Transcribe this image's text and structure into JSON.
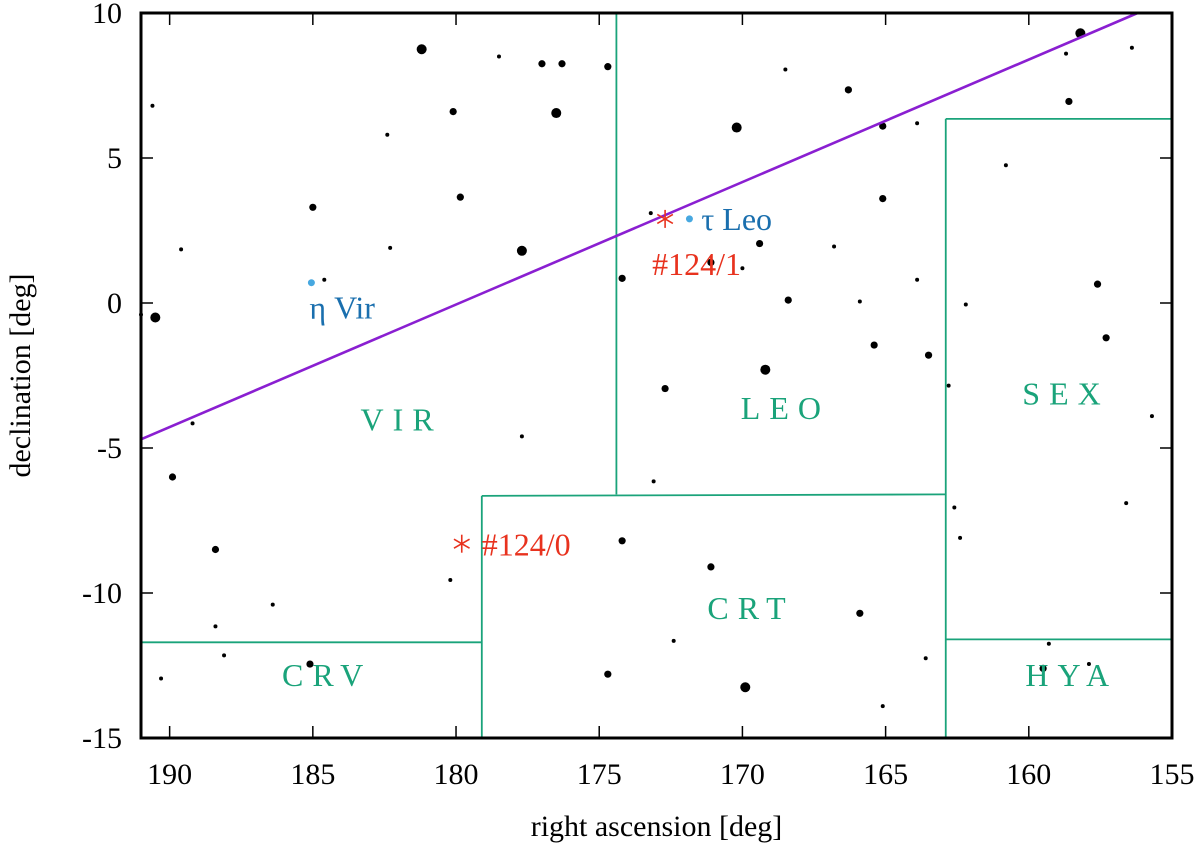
{
  "chart_data": {
    "type": "scatter",
    "xlabel": "right ascension [deg]",
    "ylabel": "declination [deg]",
    "xlim": [
      191,
      155
    ],
    "ylim": [
      -15,
      10
    ],
    "xticks": [
      190,
      185,
      180,
      175,
      170,
      165,
      160,
      155
    ],
    "yticks": [
      10,
      5,
      0,
      -5,
      -10,
      -15
    ],
    "colors": {
      "star": "#000000",
      "boundary": "#1aa37a",
      "ecliptic": "#8a1fd1",
      "named_star": "#47a8e0",
      "named_label": "#1a6fae",
      "candidate": "#e8321e"
    },
    "ecliptic": [
      [
        191,
        -4.7
      ],
      [
        156.2,
        10
      ]
    ],
    "boundaries": [
      [
        [
          174.4,
          10
        ],
        [
          174.4,
          -6.6
        ]
      ],
      [
        [
          179.1,
          -6.65
        ],
        [
          162.9,
          -6.6
        ]
      ],
      [
        [
          179.1,
          -6.65
        ],
        [
          179.1,
          -15
        ]
      ],
      [
        [
          191,
          -11.7
        ],
        [
          179.1,
          -11.7
        ]
      ],
      [
        [
          162.9,
          6.35
        ],
        [
          155,
          6.35
        ]
      ],
      [
        [
          162.9,
          6.35
        ],
        [
          162.9,
          -15
        ]
      ],
      [
        [
          162.9,
          -11.6
        ],
        [
          155,
          -11.6
        ]
      ]
    ],
    "constellations": [
      {
        "label": "VIR",
        "ra": 181.9,
        "dec": -4.4
      },
      {
        "label": "LEO",
        "ra": 168.5,
        "dec": -4.0
      },
      {
        "label": "SEX",
        "ra": 158.7,
        "dec": -3.5
      },
      {
        "label": "CRT",
        "ra": 169.7,
        "dec": -10.9
      },
      {
        "label": "CRV",
        "ra": 184.5,
        "dec": -13.2
      },
      {
        "label": "HYA",
        "ra": 158.5,
        "dec": -13.2
      }
    ],
    "named_stars": [
      {
        "label": "τ Leo",
        "ra": 171.85,
        "dec": 2.9
      },
      {
        "label": "η Vir",
        "ra": 185.05,
        "dec": 0.7
      }
    ],
    "candidates": [
      {
        "label": "#124/1",
        "ra": 172.7,
        "dec": 2.9
      },
      {
        "label": "#124/0",
        "ra": 179.8,
        "dec": -8.3
      }
    ],
    "stars": [
      {
        "ra": 190.6,
        "dec": 6.8,
        "size": 1
      },
      {
        "ra": 181.2,
        "dec": 8.75,
        "size": 3
      },
      {
        "ra": 178.5,
        "dec": 8.5,
        "size": 1
      },
      {
        "ra": 177.0,
        "dec": 8.25,
        "size": 2
      },
      {
        "ra": 176.3,
        "dec": 8.25,
        "size": 2
      },
      {
        "ra": 174.7,
        "dec": 8.15,
        "size": 2
      },
      {
        "ra": 176.5,
        "dec": 6.55,
        "size": 3
      },
      {
        "ra": 180.1,
        "dec": 6.6,
        "size": 2
      },
      {
        "ra": 182.4,
        "dec": 5.8,
        "size": 1
      },
      {
        "ra": 185.0,
        "dec": 3.3,
        "size": 2
      },
      {
        "ra": 179.85,
        "dec": 3.65,
        "size": 2
      },
      {
        "ra": 189.6,
        "dec": 1.85,
        "size": 1
      },
      {
        "ra": 182.3,
        "dec": 1.9,
        "size": 1
      },
      {
        "ra": 177.7,
        "dec": 1.8,
        "size": 3
      },
      {
        "ra": 184.6,
        "dec": 0.8,
        "size": 1
      },
      {
        "ra": 190.5,
        "dec": -0.5,
        "size": 3
      },
      {
        "ra": 191.0,
        "dec": -0.4,
        "size": 1
      },
      {
        "ra": 189.2,
        "dec": -4.15,
        "size": 1
      },
      {
        "ra": 177.7,
        "dec": -4.6,
        "size": 1
      },
      {
        "ra": 189.9,
        "dec": -6.0,
        "size": 2
      },
      {
        "ra": 188.4,
        "dec": -8.5,
        "size": 2
      },
      {
        "ra": 180.2,
        "dec": -9.55,
        "size": 1
      },
      {
        "ra": 186.4,
        "dec": -10.4,
        "size": 1
      },
      {
        "ra": 188.4,
        "dec": -11.15,
        "size": 1
      },
      {
        "ra": 188.1,
        "dec": -12.15,
        "size": 1
      },
      {
        "ra": 185.1,
        "dec": -12.45,
        "size": 2
      },
      {
        "ra": 190.3,
        "dec": -12.95,
        "size": 1
      },
      {
        "ra": 173.2,
        "dec": 3.1,
        "size": 1
      },
      {
        "ra": 174.2,
        "dec": 0.85,
        "size": 2
      },
      {
        "ra": 170.2,
        "dec": 6.05,
        "size": 3
      },
      {
        "ra": 168.5,
        "dec": 8.05,
        "size": 1
      },
      {
        "ra": 166.3,
        "dec": 7.35,
        "size": 2
      },
      {
        "ra": 165.1,
        "dec": 6.1,
        "size": 2
      },
      {
        "ra": 163.9,
        "dec": 6.2,
        "size": 1
      },
      {
        "ra": 169.4,
        "dec": 2.05,
        "size": 2
      },
      {
        "ra": 166.8,
        "dec": 1.95,
        "size": 1
      },
      {
        "ra": 165.1,
        "dec": 3.6,
        "size": 2
      },
      {
        "ra": 171.1,
        "dec": 1.4,
        "size": 2
      },
      {
        "ra": 170.0,
        "dec": 1.2,
        "size": 1
      },
      {
        "ra": 168.4,
        "dec": 0.1,
        "size": 2
      },
      {
        "ra": 165.9,
        "dec": 0.05,
        "size": 1
      },
      {
        "ra": 163.9,
        "dec": 0.8,
        "size": 1
      },
      {
        "ra": 165.4,
        "dec": -1.45,
        "size": 2
      },
      {
        "ra": 163.5,
        "dec": -1.8,
        "size": 2
      },
      {
        "ra": 172.7,
        "dec": -2.95,
        "size": 2
      },
      {
        "ra": 169.2,
        "dec": -2.3,
        "size": 3
      },
      {
        "ra": 173.1,
        "dec": -6.15,
        "size": 1
      },
      {
        "ra": 174.2,
        "dec": -8.2,
        "size": 2
      },
      {
        "ra": 171.1,
        "dec": -9.1,
        "size": 2
      },
      {
        "ra": 172.4,
        "dec": -11.65,
        "size": 1
      },
      {
        "ra": 165.9,
        "dec": -10.7,
        "size": 2
      },
      {
        "ra": 174.7,
        "dec": -12.8,
        "size": 2
      },
      {
        "ra": 169.9,
        "dec": -13.25,
        "size": 3
      },
      {
        "ra": 163.6,
        "dec": -12.25,
        "size": 1
      },
      {
        "ra": 165.1,
        "dec": -13.9,
        "size": 1
      },
      {
        "ra": 158.2,
        "dec": 9.3,
        "size": 3
      },
      {
        "ra": 158.7,
        "dec": 8.6,
        "size": 1
      },
      {
        "ra": 156.4,
        "dec": 8.8,
        "size": 1
      },
      {
        "ra": 158.6,
        "dec": 6.95,
        "size": 2
      },
      {
        "ra": 160.8,
        "dec": 4.75,
        "size": 1
      },
      {
        "ra": 162.2,
        "dec": -0.05,
        "size": 1
      },
      {
        "ra": 157.6,
        "dec": 0.65,
        "size": 2
      },
      {
        "ra": 157.3,
        "dec": -1.2,
        "size": 2
      },
      {
        "ra": 162.8,
        "dec": -2.85,
        "size": 1
      },
      {
        "ra": 155.7,
        "dec": -3.9,
        "size": 1
      },
      {
        "ra": 162.6,
        "dec": -7.05,
        "size": 1
      },
      {
        "ra": 162.4,
        "dec": -8.1,
        "size": 1
      },
      {
        "ra": 156.6,
        "dec": -6.9,
        "size": 1
      },
      {
        "ra": 159.3,
        "dec": -11.75,
        "size": 1
      },
      {
        "ra": 159.5,
        "dec": -12.6,
        "size": 2
      },
      {
        "ra": 157.9,
        "dec": -12.45,
        "size": 1
      }
    ]
  }
}
